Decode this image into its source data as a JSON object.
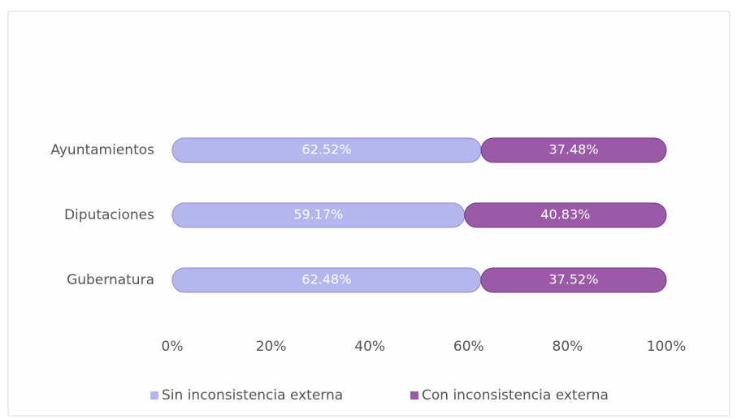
{
  "chart_data": {
    "type": "stacked-barh",
    "categories": [
      "Ayuntamientos",
      "Diputaciones",
      "Gubernatura"
    ],
    "series": [
      {
        "name": "Sin inconsistencia externa",
        "color": "#b6b6ee",
        "values": [
          62.52,
          59.17,
          62.48
        ],
        "value_labels": [
          "62.52%",
          "59.17%",
          "62.48%"
        ]
      },
      {
        "name": "Con inconsistencia externa",
        "color": "#9a5aa8",
        "values": [
          37.48,
          40.83,
          37.52
        ],
        "value_labels": [
          "37.48%",
          "40.83%",
          "37.52%"
        ]
      }
    ],
    "xlim": [
      0,
      100
    ],
    "xticks": [
      {
        "value": 0,
        "label": "0%"
      },
      {
        "value": 20,
        "label": "20%"
      },
      {
        "value": 40,
        "label": "40%"
      },
      {
        "value": 60,
        "label": "60%"
      },
      {
        "value": 80,
        "label": "80%"
      },
      {
        "value": 100,
        "label": "100%"
      }
    ],
    "legend": "bottom"
  }
}
